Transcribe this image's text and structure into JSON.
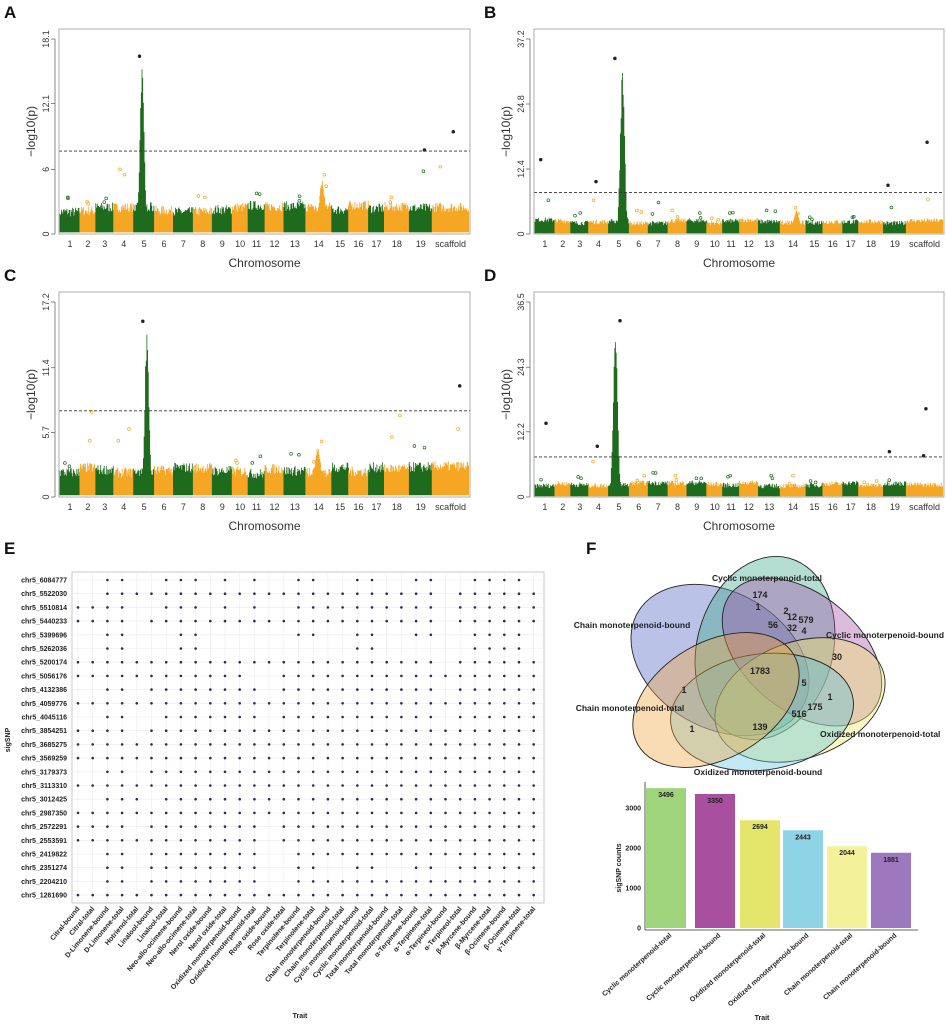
{
  "panel_letters": {
    "A": "A",
    "B": "B",
    "C": "C",
    "D": "D",
    "E": "E",
    "F": "F"
  },
  "colors": {
    "chrom_odd": "#1e6b1e",
    "chrom_even": "#f5a623",
    "threshold": "#333333",
    "dot": "#2b2b5e"
  },
  "chart_data": [
    {
      "panel": "A",
      "type": "scatter",
      "xlabel": "Chromosome",
      "ylabel": "−log10(p)",
      "chromosomes": [
        "1",
        "2",
        "3",
        "4",
        "5",
        "6",
        "7",
        "8",
        "9",
        "10",
        "11",
        "12",
        "13",
        "14",
        "15",
        "16",
        "17",
        "18",
        "19",
        "scaffold"
      ],
      "yticks": [
        "0",
        "6",
        "12.1",
        "18.1"
      ],
      "ylim": [
        0,
        18.1
      ],
      "threshold": 7.7,
      "max_by_chromosome": [
        3.3,
        3.0,
        3.3,
        6.0,
        16.5,
        2.7,
        2.6,
        3.4,
        2.9,
        3.0,
        3.7,
        2.5,
        3.5,
        5.5,
        2.6,
        2.9,
        3.0,
        3.4,
        7.8,
        9.5
      ]
    },
    {
      "panel": "B",
      "type": "scatter",
      "xlabel": "Chromosome",
      "ylabel": "−log10(p)",
      "chromosomes": [
        "1",
        "2",
        "3",
        "4",
        "5",
        "6",
        "7",
        "8",
        "9",
        "10",
        "11",
        "12",
        "13",
        "14",
        "15",
        "16",
        "17",
        "18",
        "19",
        "scaffold"
      ],
      "yticks": [
        "0",
        "12.4",
        "24.8",
        "37.2"
      ],
      "ylim": [
        0,
        37.2
      ],
      "threshold": 7.9,
      "max_by_chromosome": [
        14.2,
        3.0,
        4.0,
        10.0,
        33.5,
        4.5,
        6.0,
        4.5,
        4.0,
        3.0,
        4.0,
        3.0,
        4.5,
        5.0,
        3.2,
        3.0,
        3.2,
        3.0,
        9.3,
        17.5
      ]
    },
    {
      "panel": "C",
      "type": "scatter",
      "xlabel": "Chromosome",
      "ylabel": "−log10(p)",
      "chromosomes": [
        "1",
        "2",
        "3",
        "4",
        "5",
        "6",
        "7",
        "8",
        "9",
        "10",
        "11",
        "12",
        "13",
        "14",
        "15",
        "16",
        "17",
        "18",
        "19",
        "scaffold"
      ],
      "yticks": [
        "0",
        "5.7",
        "11.4",
        "17.2"
      ],
      "ylim": [
        0,
        17.2
      ],
      "threshold": 7.6,
      "max_by_chromosome": [
        3.0,
        7.5,
        3.1,
        6.0,
        15.5,
        3.0,
        2.8,
        3.0,
        3.0,
        3.0,
        3.6,
        2.5,
        3.8,
        4.9,
        2.7,
        3.0,
        3.0,
        7.2,
        4.5,
        9.8
      ]
    },
    {
      "panel": "D",
      "type": "scatter",
      "xlabel": "Chromosome",
      "ylabel": "−log10(p)",
      "chromosomes": [
        "1",
        "2",
        "3",
        "4",
        "5",
        "6",
        "7",
        "8",
        "9",
        "10",
        "11",
        "12",
        "13",
        "14",
        "15",
        "16",
        "17",
        "18",
        "19",
        "scaffold"
      ],
      "yticks": [
        "0",
        "12.2",
        "24.3",
        "36.5"
      ],
      "ylim": [
        0,
        36.5
      ],
      "threshold": 7.5,
      "max_by_chromosome": [
        13.8,
        3.0,
        3.5,
        9.5,
        33.0,
        4.0,
        4.5,
        4.0,
        3.5,
        3.0,
        4.0,
        3.0,
        4.0,
        4.0,
        3.0,
        3.0,
        3.0,
        3.0,
        8.5,
        16.5
      ]
    },
    {
      "panel": "E",
      "type": "heatmap",
      "xlabel": "Trait",
      "ylabel": "sigSNP",
      "traits": [
        "Citral-bound",
        "Citral-total",
        "D-Limonene-bound",
        "D-Limonene-total",
        "Hotrienol-total",
        "Linalool-bound",
        "Linalool-total",
        "Neo-allo-ocimene-bound",
        "Neo-allo-ocimene-total",
        "Nerol oxide-bound",
        "Nerol oxide-total",
        "Oxidized monoterpenoid-bound",
        "Oxidized monoterpenoid-total",
        "Rose oxide-bound",
        "Rose oxide-total",
        "Terpinolene-bound",
        "Terpinolene-total",
        "Chain monoterpenoid-bound",
        "Chain monoterpenoid-total",
        "Cyclic monoterpenoid-bound",
        "Cyclic monoterpenoid-total",
        "Total monoterpenoid-bound",
        "Total monoterpenoid-total",
        "α-Terpinene-bound",
        "α-Terpinene-total",
        "α-Terpineol-bound",
        "α-Terpineol-total",
        "β-Myrcene-bound",
        "β-Myrcene-total",
        "β-Ocimene-bound",
        "β-Ocimene-total",
        "γ-Terpinene-total"
      ],
      "snps": [
        "chr5_6084777",
        "chr5_5522030",
        "chr5_5510814",
        "chr5_5440233",
        "chr5_5399696",
        "chr5_5262036",
        "chr5_5200174",
        "chr5_5056176",
        "chr5_4132386",
        "chr5_4059776",
        "chr5_4045116",
        "chr5_3854251",
        "chr5_3685275",
        "chr5_3569259",
        "chr5_3179373",
        "chr5_3113310",
        "chr5_3012425",
        "chr5_2987350",
        "chr5_2572291",
        "chr5_2553591",
        "chr5_2419822",
        "chr5_2351274",
        "chr5_2204210",
        "chr5_1261690"
      ],
      "presence": [
        "00110011101010011001100110011110",
        "00111111111111111111111110111111",
        "11110011101010011111111110111111",
        "11110111111111111111111110111111",
        "00110001100000011001100110011110",
        "00110001100000000001100000011110",
        "11111111111111111111111110111111",
        "11111111111100111111111111111111",
        "00110111111110111111111110111111",
        "11111111111111111111111111111111",
        "00110011111110111111111110111111",
        "11110111111111111111111111111111",
        "11111111111111111111111111111111",
        "11111111111111111111111111111111",
        "00110111111111111111111111111111",
        "11111111111111111111111111111111",
        "00111011111111111111111111111111",
        "11111111111111111111111111111111",
        "11110111111110111111111111111111",
        "11111111111110111111111111111111",
        "00110111111110011111111111111111",
        "00110111111110011001100110111111",
        "00110111111110011111111111111111",
        "11111111111111111111111111111111"
      ]
    },
    {
      "panel": "F",
      "type": "venn",
      "sets": [
        {
          "name": "Chain monoterpenoid-bound",
          "color": "#4a5fc1"
        },
        {
          "name": "Cyclic monoterpenoid-total",
          "color": "#3aa88a"
        },
        {
          "name": "Cyclic monoterpenoid-bound",
          "color": "#a44ba8"
        },
        {
          "name": "Oxidized monoterpenoid-total",
          "color": "#eeea60"
        },
        {
          "name": "Oxidized monoterpenoid-bound",
          "color": "#5cc3df"
        },
        {
          "name": "Chain monoterpenoid-total",
          "color": "#f2a23a"
        }
      ],
      "region_counts": [
        "174",
        "1",
        "2",
        "12",
        "579",
        "56",
        "32",
        "4",
        "30",
        "1783",
        "5",
        "1",
        "1",
        "175",
        "516",
        "1",
        "139"
      ]
    },
    {
      "panel": "F",
      "type": "bar",
      "xlabel": "Trait",
      "ylabel": "sigSNP counts",
      "categories": [
        "Cyclic monoterpenoid-total",
        "Cyclic monoterpenoid-bound",
        "Oxidized monoterpenoid-total",
        "Oxidized monoterpenoid-bound",
        "Chain monoterpenoid-total",
        "Chain monoterpenoid-bound"
      ],
      "values": [
        3496,
        3350,
        2694,
        2443,
        2044,
        1881
      ],
      "colors": [
        "#9fd47c",
        "#a84fa0",
        "#e3e66a",
        "#8fd3e6",
        "#f3f29a",
        "#9d78bf"
      ],
      "yticks": [
        "0",
        "1000",
        "2000",
        "3000"
      ],
      "ylim": [
        0,
        3500
      ]
    }
  ]
}
